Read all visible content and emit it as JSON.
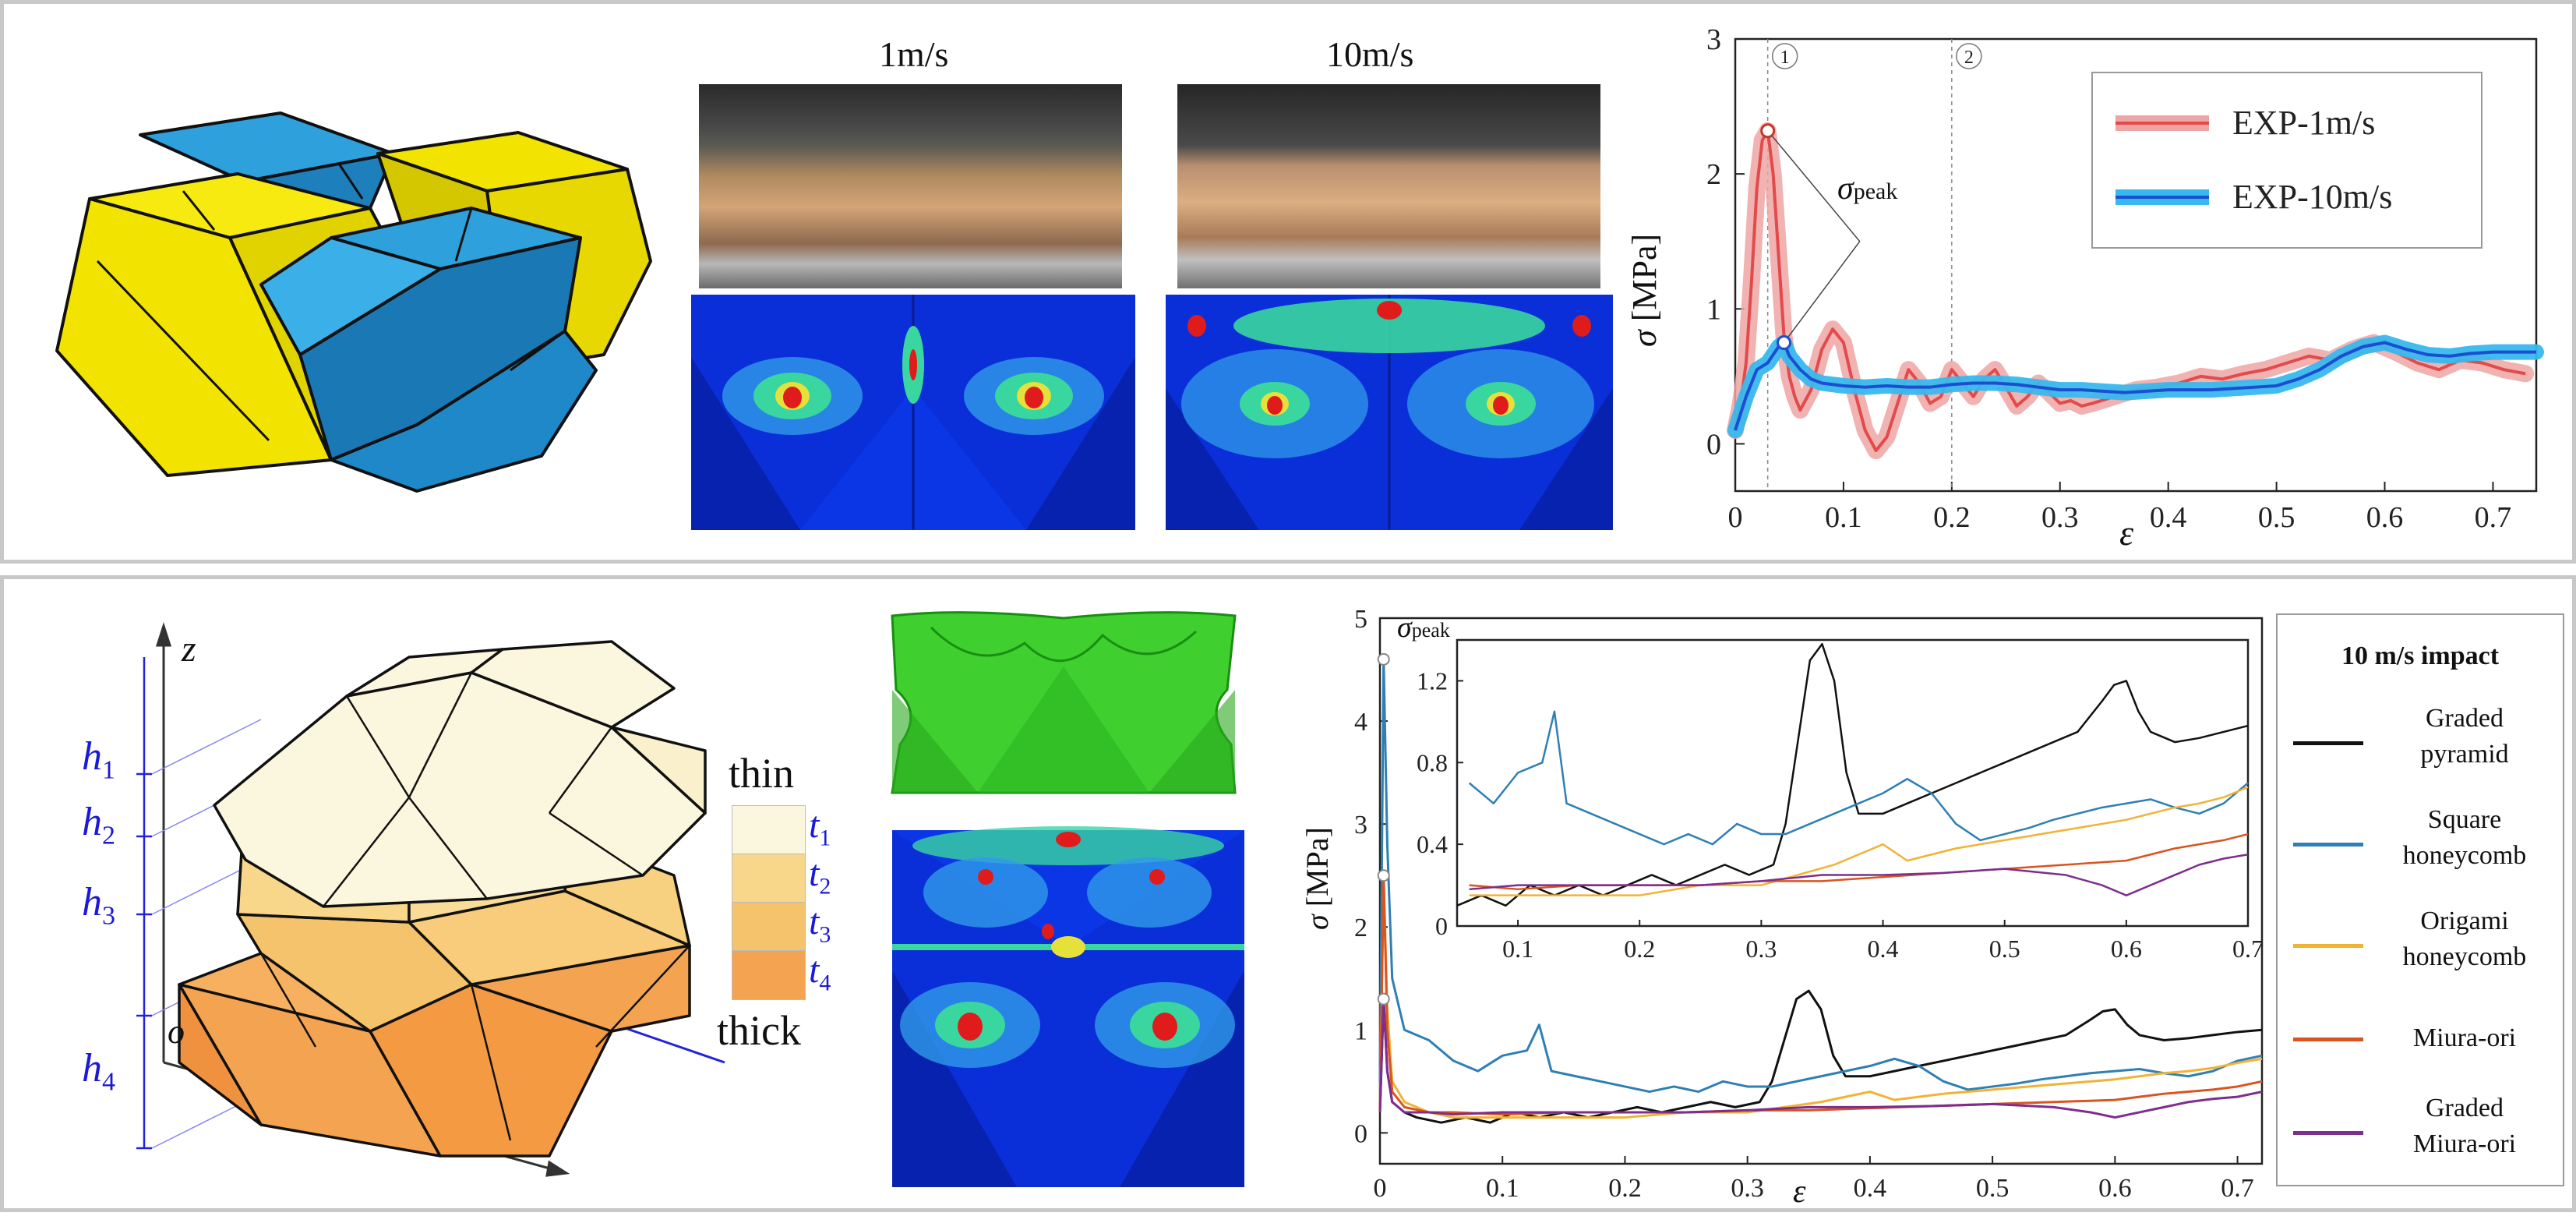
{
  "top": {
    "photo_labels": [
      "1m/s",
      "10m/s"
    ],
    "chart": {
      "markers": [
        "①",
        "②"
      ],
      "peak_symbol": "σ",
      "peak_sub": "peak",
      "ylabel_sym": "σ",
      "ylabel_unit": "[MPa]",
      "xlabel": "ε"
    }
  },
  "bottom": {
    "axis_z": "z",
    "axis_o": "o",
    "heights": [
      {
        "sym": "h",
        "sub": "1"
      },
      {
        "sym": "h",
        "sub": "2"
      },
      {
        "sym": "h",
        "sub": "3"
      },
      {
        "sym": "h",
        "sub": "4"
      }
    ],
    "thin_label": "thin",
    "thick_label": "thick",
    "thicknesses": [
      {
        "sym": "t",
        "sub": "1",
        "color": "#fbf6de"
      },
      {
        "sym": "t",
        "sub": "2",
        "color": "#f8d68a"
      },
      {
        "sym": "t",
        "sub": "3",
        "color": "#f6c36d"
      },
      {
        "sym": "t",
        "sub": "4",
        "color": "#f4a451"
      }
    ],
    "chart": {
      "ylabel_sym": "σ",
      "ylabel_unit": "[MPa]",
      "xlabel": "ε",
      "peak_symbol": "σ",
      "peak_sub": "peak"
    },
    "legend": {
      "title": "10 m/s impact",
      "entries": [
        {
          "label": [
            "Graded",
            "pyramid"
          ],
          "color": "#111111"
        },
        {
          "label": [
            "Square",
            "honeycomb"
          ],
          "color": "#2f7fb5"
        },
        {
          "label": [
            "Origami",
            "honeycomb"
          ],
          "color": "#f2b233"
        },
        {
          "label": [
            "Miura-ori"
          ],
          "color": "#d9541f"
        },
        {
          "label": [
            "Graded",
            "Miura-ori"
          ],
          "color": "#7d2e8e"
        }
      ]
    }
  },
  "chart_data": [
    {
      "type": "line",
      "title": "",
      "xlabel": "ε",
      "ylabel": "σ [MPa]",
      "xlim": [
        0,
        0.74
      ],
      "ylim": [
        -0.35,
        3
      ],
      "xticks": [
        0,
        0.1,
        0.2,
        0.3,
        0.4,
        0.5,
        0.6,
        0.7
      ],
      "yticks": [
        0,
        1,
        2,
        3
      ],
      "legend_position": "top-right",
      "vlines": [
        0.03,
        0.2
      ],
      "series": [
        {
          "name": "EXP-1m/s",
          "color": "#e24b4b",
          "band_color": "#eea5a5",
          "x": [
            0,
            0.005,
            0.01,
            0.015,
            0.02,
            0.025,
            0.03,
            0.035,
            0.04,
            0.045,
            0.05,
            0.055,
            0.06,
            0.07,
            0.08,
            0.09,
            0.1,
            0.11,
            0.12,
            0.13,
            0.14,
            0.15,
            0.16,
            0.17,
            0.18,
            0.19,
            0.2,
            0.21,
            0.22,
            0.23,
            0.24,
            0.25,
            0.26,
            0.27,
            0.28,
            0.29,
            0.3,
            0.31,
            0.32,
            0.33,
            0.35,
            0.37,
            0.39,
            0.41,
            0.43,
            0.45,
            0.47,
            0.49,
            0.51,
            0.53,
            0.55,
            0.57,
            0.59,
            0.61,
            0.63,
            0.65,
            0.67,
            0.69,
            0.71,
            0.73
          ],
          "y": [
            0.1,
            0.3,
            0.6,
            1.2,
            1.9,
            2.25,
            2.32,
            2.0,
            1.4,
            0.8,
            0.5,
            0.35,
            0.25,
            0.4,
            0.7,
            0.85,
            0.75,
            0.4,
            0.1,
            -0.05,
            0.05,
            0.3,
            0.55,
            0.45,
            0.3,
            0.35,
            0.55,
            0.45,
            0.35,
            0.48,
            0.55,
            0.42,
            0.28,
            0.35,
            0.45,
            0.38,
            0.3,
            0.32,
            0.28,
            0.3,
            0.35,
            0.4,
            0.42,
            0.45,
            0.5,
            0.48,
            0.52,
            0.55,
            0.6,
            0.65,
            0.62,
            0.7,
            0.75,
            0.68,
            0.6,
            0.55,
            0.62,
            0.6,
            0.55,
            0.52
          ]
        },
        {
          "name": "EXP-10m/s",
          "color": "#1a4fd0",
          "band_color": "#38b8ee",
          "x": [
            0,
            0.01,
            0.02,
            0.03,
            0.04,
            0.045,
            0.05,
            0.06,
            0.07,
            0.08,
            0.1,
            0.12,
            0.14,
            0.16,
            0.18,
            0.2,
            0.22,
            0.24,
            0.26,
            0.28,
            0.3,
            0.32,
            0.34,
            0.36,
            0.38,
            0.4,
            0.42,
            0.44,
            0.46,
            0.48,
            0.5,
            0.52,
            0.54,
            0.56,
            0.58,
            0.6,
            0.62,
            0.64,
            0.66,
            0.68,
            0.7,
            0.72,
            0.74
          ],
          "y": [
            0.1,
            0.35,
            0.55,
            0.6,
            0.72,
            0.75,
            0.65,
            0.55,
            0.48,
            0.45,
            0.43,
            0.42,
            0.43,
            0.42,
            0.42,
            0.44,
            0.45,
            0.45,
            0.44,
            0.42,
            0.4,
            0.4,
            0.39,
            0.38,
            0.39,
            0.4,
            0.4,
            0.4,
            0.41,
            0.42,
            0.43,
            0.48,
            0.55,
            0.65,
            0.72,
            0.75,
            0.7,
            0.66,
            0.65,
            0.67,
            0.68,
            0.68,
            0.68
          ]
        }
      ],
      "annotations": [
        {
          "text": "σpeak",
          "points": [
            [
              0.03,
              2.32
            ],
            [
              0.045,
              0.75
            ]
          ]
        }
      ]
    },
    {
      "type": "line",
      "title": "",
      "xlabel": "ε",
      "ylabel": "σ [MPa]",
      "xlim": [
        0,
        0.72
      ],
      "ylim": [
        -0.3,
        5
      ],
      "xticks": [
        0,
        0.1,
        0.2,
        0.3,
        0.4,
        0.5,
        0.6,
        0.7
      ],
      "yticks": [
        0,
        1,
        2,
        3,
        4,
        5
      ],
      "legend_position": "right",
      "series": [
        {
          "name": "Graded pyramid",
          "color": "#111111",
          "x": [
            0,
            0.003,
            0.006,
            0.01,
            0.02,
            0.03,
            0.05,
            0.07,
            0.09,
            0.11,
            0.13,
            0.15,
            0.17,
            0.19,
            0.21,
            0.23,
            0.25,
            0.27,
            0.29,
            0.31,
            0.32,
            0.33,
            0.34,
            0.35,
            0.36,
            0.37,
            0.38,
            0.4,
            0.42,
            0.44,
            0.46,
            0.48,
            0.5,
            0.52,
            0.54,
            0.56,
            0.58,
            0.59,
            0.6,
            0.61,
            0.62,
            0.64,
            0.66,
            0.68,
            0.7,
            0.72
          ],
          "y": [
            0.2,
            1.3,
            0.6,
            0.3,
            0.2,
            0.15,
            0.1,
            0.15,
            0.1,
            0.2,
            0.15,
            0.2,
            0.15,
            0.2,
            0.25,
            0.2,
            0.25,
            0.3,
            0.25,
            0.3,
            0.5,
            0.9,
            1.3,
            1.38,
            1.2,
            0.75,
            0.55,
            0.55,
            0.6,
            0.65,
            0.7,
            0.75,
            0.8,
            0.85,
            0.9,
            0.95,
            1.1,
            1.18,
            1.2,
            1.05,
            0.95,
            0.9,
            0.92,
            0.95,
            0.98,
            1.0
          ]
        },
        {
          "name": "Square honeycomb",
          "color": "#2f7fb5",
          "x": [
            0,
            0.003,
            0.006,
            0.01,
            0.02,
            0.04,
            0.06,
            0.08,
            0.1,
            0.12,
            0.13,
            0.14,
            0.16,
            0.18,
            0.2,
            0.22,
            0.24,
            0.26,
            0.28,
            0.3,
            0.32,
            0.34,
            0.36,
            0.38,
            0.4,
            0.42,
            0.44,
            0.46,
            0.48,
            0.5,
            0.52,
            0.54,
            0.56,
            0.58,
            0.6,
            0.62,
            0.64,
            0.66,
            0.68,
            0.7,
            0.72
          ],
          "y": [
            0.5,
            4.6,
            2.8,
            1.5,
            1.0,
            0.9,
            0.7,
            0.6,
            0.75,
            0.8,
            1.05,
            0.6,
            0.55,
            0.5,
            0.45,
            0.4,
            0.45,
            0.4,
            0.5,
            0.45,
            0.45,
            0.5,
            0.55,
            0.6,
            0.65,
            0.72,
            0.65,
            0.5,
            0.42,
            0.45,
            0.48,
            0.52,
            0.55,
            0.58,
            0.6,
            0.62,
            0.58,
            0.55,
            0.6,
            0.7,
            0.75
          ]
        },
        {
          "name": "Origami honeycomb",
          "color": "#f2b233",
          "x": [
            0,
            0.003,
            0.006,
            0.01,
            0.02,
            0.04,
            0.06,
            0.1,
            0.15,
            0.2,
            0.25,
            0.3,
            0.33,
            0.36,
            0.38,
            0.4,
            0.42,
            0.44,
            0.46,
            0.48,
            0.5,
            0.52,
            0.54,
            0.56,
            0.58,
            0.6,
            0.62,
            0.64,
            0.66,
            0.68,
            0.7,
            0.72
          ],
          "y": [
            0.2,
            2.5,
            1.2,
            0.5,
            0.3,
            0.2,
            0.15,
            0.15,
            0.15,
            0.15,
            0.2,
            0.2,
            0.25,
            0.3,
            0.35,
            0.4,
            0.32,
            0.35,
            0.38,
            0.4,
            0.42,
            0.44,
            0.46,
            0.48,
            0.5,
            0.52,
            0.55,
            0.58,
            0.6,
            0.63,
            0.68,
            0.72
          ]
        },
        {
          "name": "Miura-ori",
          "color": "#d9541f",
          "x": [
            0,
            0.003,
            0.006,
            0.01,
            0.02,
            0.04,
            0.06,
            0.1,
            0.15,
            0.2,
            0.25,
            0.3,
            0.35,
            0.4,
            0.45,
            0.5,
            0.55,
            0.6,
            0.62,
            0.64,
            0.66,
            0.68,
            0.7,
            0.72
          ],
          "y": [
            0.2,
            2.5,
            1.0,
            0.4,
            0.25,
            0.2,
            0.2,
            0.18,
            0.2,
            0.2,
            0.2,
            0.22,
            0.22,
            0.24,
            0.26,
            0.28,
            0.3,
            0.32,
            0.35,
            0.38,
            0.4,
            0.42,
            0.45,
            0.5
          ]
        },
        {
          "name": "Graded Miura-ori",
          "color": "#7d2e8e",
          "x": [
            0,
            0.003,
            0.006,
            0.01,
            0.02,
            0.04,
            0.06,
            0.1,
            0.15,
            0.2,
            0.25,
            0.3,
            0.35,
            0.4,
            0.45,
            0.5,
            0.55,
            0.58,
            0.6,
            0.62,
            0.64,
            0.66,
            0.68,
            0.7,
            0.72
          ],
          "y": [
            0.2,
            1.3,
            0.6,
            0.3,
            0.2,
            0.2,
            0.18,
            0.2,
            0.2,
            0.2,
            0.2,
            0.22,
            0.25,
            0.25,
            0.26,
            0.28,
            0.25,
            0.2,
            0.15,
            0.2,
            0.25,
            0.3,
            0.33,
            0.35,
            0.4
          ]
        }
      ],
      "peak_markers_y": [
        4.6,
        2.5,
        1.3
      ],
      "inset": {
        "xlim": [
          0.05,
          0.7
        ],
        "ylim": [
          0,
          1.4
        ],
        "xticks": [
          0.1,
          0.2,
          0.3,
          0.4,
          0.5,
          0.6,
          0.7
        ],
        "yticks": [
          0,
          0.4,
          0.8,
          1.2
        ]
      }
    }
  ]
}
